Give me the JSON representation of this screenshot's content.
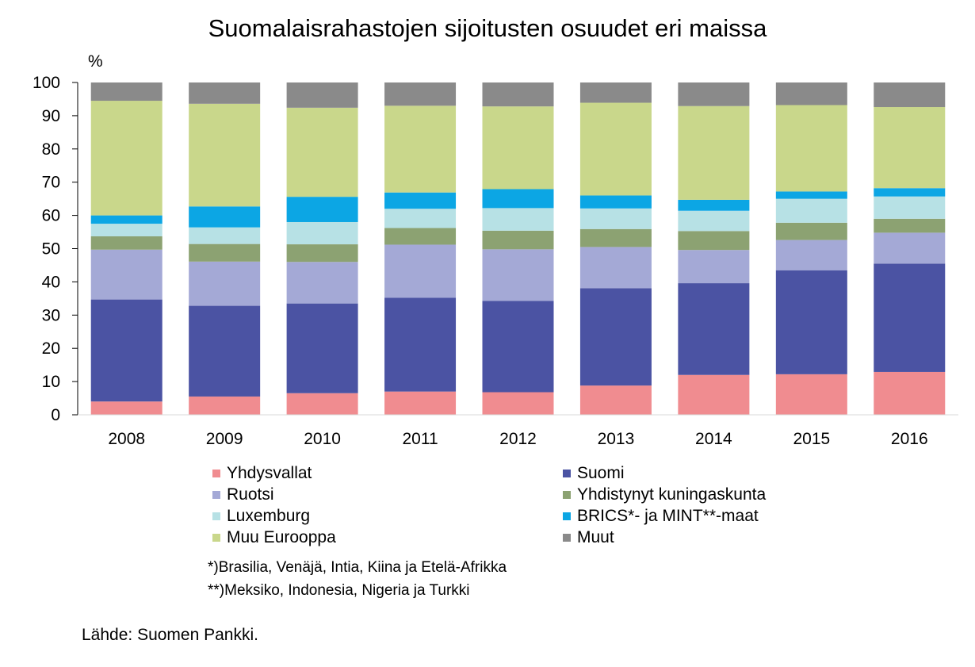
{
  "chart_data": {
    "type": "bar",
    "stacked": true,
    "title": "Suomalaisrahastojen sijoitusten osuudet eri maissa",
    "ylabel": "%",
    "xlabel": "",
    "ylim": [
      0,
      100
    ],
    "yticks": [
      "0",
      "10",
      "20",
      "30",
      "40",
      "50",
      "60",
      "70",
      "80",
      "90",
      "100"
    ],
    "grid": false,
    "legend_position": "bottom",
    "categories": [
      "2008",
      "2009",
      "2010",
      "2011",
      "2012",
      "2013",
      "2014",
      "2015",
      "2016"
    ],
    "series": [
      {
        "name": "Yhdysvallat",
        "color": "#f08c90",
        "values": [
          4.0,
          5.5,
          6.5,
          7.0,
          6.8,
          8.8,
          12.0,
          12.2,
          12.9
        ]
      },
      {
        "name": "Suomi",
        "color": "#4b53a3",
        "values": [
          30.7,
          27.3,
          27.0,
          28.2,
          27.5,
          29.3,
          27.6,
          31.3,
          32.6
        ]
      },
      {
        "name": "Ruotsi",
        "color": "#a4a9d6",
        "values": [
          15.0,
          13.3,
          12.5,
          16.0,
          15.5,
          12.4,
          10.0,
          9.1,
          9.3
        ]
      },
      {
        "name": "Yhdistynyt kuningaskunta",
        "color": "#8ca272",
        "values": [
          4.0,
          5.3,
          5.3,
          5.0,
          5.6,
          5.4,
          5.7,
          5.2,
          4.2
        ]
      },
      {
        "name": "Luxemburg",
        "color": "#b7e1e5",
        "values": [
          3.8,
          5.0,
          6.7,
          5.8,
          6.8,
          6.2,
          6.1,
          7.2,
          6.7
        ]
      },
      {
        "name": "BRICS*- ja MINT**-maat",
        "color": "#0ca6e4",
        "values": [
          2.5,
          6.3,
          7.6,
          4.9,
          5.7,
          3.9,
          3.3,
          2.2,
          2.5
        ]
      },
      {
        "name": "Muu Eurooppa",
        "color": "#c9d78b",
        "values": [
          34.5,
          30.9,
          26.8,
          26.1,
          24.9,
          27.9,
          28.2,
          26.0,
          24.4
        ]
      },
      {
        "name": "Muut",
        "color": "#8a8a8a",
        "values": [
          5.5,
          6.4,
          7.6,
          7.0,
          7.2,
          6.1,
          7.1,
          6.8,
          7.4
        ]
      }
    ],
    "footnotes": [
      "*)Brasilia, Venäjä, Intia, Kiina ja Etelä-Afrikka",
      "**)Meksiko, Indonesia, Nigeria ja Turkki"
    ],
    "source": "Lähde: Suomen Pankki."
  }
}
